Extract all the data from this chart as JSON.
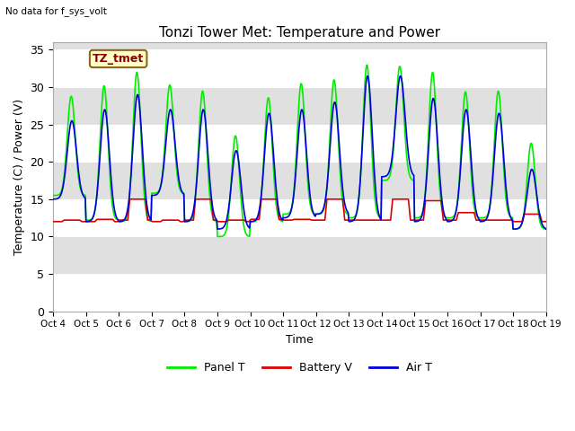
{
  "title": "Tonzi Tower Met: Temperature and Power",
  "xlabel": "Time",
  "ylabel": "Temperature (C) / Power (V)",
  "ylim": [
    0,
    36
  ],
  "xlim_days": [
    0,
    15
  ],
  "xtick_labels": [
    "Oct 4",
    "Oct 5",
    "Oct 6",
    "Oct 7",
    "Oct 8",
    "Oct 9",
    "Oct 10",
    "Oct 11",
    "Oct 12",
    "Oct 13",
    "Oct 14",
    "Oct 15",
    "Oct 16",
    "Oct 17",
    "Oct 18",
    "Oct 19"
  ],
  "xtick_positions": [
    0,
    1,
    2,
    3,
    4,
    5,
    6,
    7,
    8,
    9,
    10,
    11,
    12,
    13,
    14,
    15
  ],
  "ytick_positions": [
    0,
    5,
    10,
    15,
    20,
    25,
    30,
    35
  ],
  "ytick_labels": [
    "0",
    "5",
    "10",
    "15",
    "20",
    "25",
    "30",
    "35"
  ],
  "no_data_text": "No data for f_sys_volt",
  "annotation_text": "TZ_tmet",
  "background_color": "#ffffff",
  "plot_bg_color": "#e0e0e0",
  "panel_color": "#00ee00",
  "battery_color": "#dd0000",
  "air_color": "#0000dd",
  "legend_labels": [
    "Panel T",
    "Battery V",
    "Air T"
  ],
  "grid_color": "#ffffff",
  "line_width": 1.2,
  "panel_peaks": [
    28.8,
    30.2,
    32.0,
    30.3,
    29.5,
    23.5,
    28.6,
    30.5,
    31.0,
    33.0,
    32.8,
    32.0,
    29.4,
    29.5,
    22.5,
    11.5
  ],
  "panel_troughs": [
    15.5,
    12.2,
    12.0,
    15.8,
    12.0,
    10.0,
    12.0,
    13.0,
    13.0,
    12.5,
    17.5,
    12.5,
    12.5,
    12.5,
    11.0,
    11.5
  ],
  "air_peaks": [
    25.5,
    27.0,
    29.0,
    27.0,
    27.0,
    21.5,
    26.5,
    27.0,
    28.0,
    31.5,
    31.5,
    28.5,
    27.0,
    26.5,
    19.0,
    12.0
  ],
  "air_troughs": [
    15.0,
    12.0,
    12.0,
    15.5,
    12.0,
    11.0,
    12.0,
    12.5,
    13.0,
    12.0,
    18.0,
    12.0,
    12.0,
    12.0,
    11.0,
    12.0
  ],
  "bat_plateau": [
    12.2,
    12.3,
    15.0,
    12.2,
    15.0,
    12.2,
    15.0,
    12.3,
    15.0,
    12.2,
    15.0,
    14.8,
    13.2,
    12.2,
    13.0,
    11.8
  ],
  "bat_low": [
    12.0,
    12.0,
    12.2,
    12.0,
    12.2,
    12.0,
    12.3,
    12.2,
    12.2,
    12.2,
    12.2,
    12.2,
    12.2,
    12.2,
    12.0,
    11.5
  ]
}
